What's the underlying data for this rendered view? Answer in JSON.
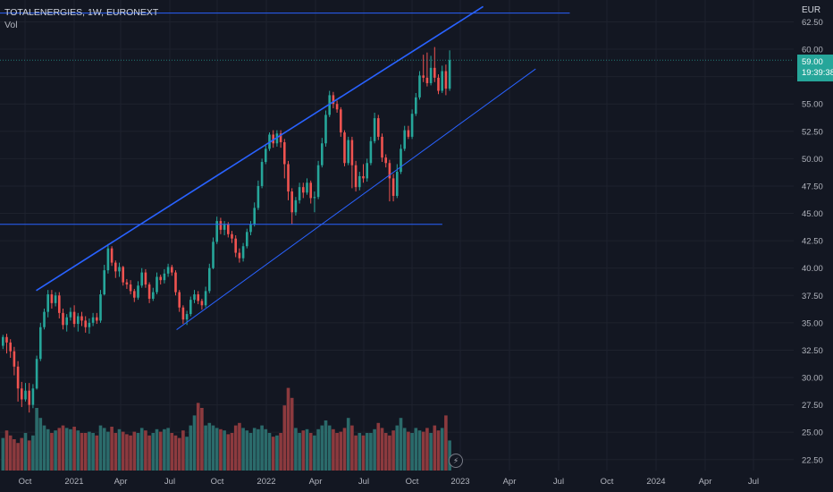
{
  "legend": {
    "symbol": "TOTALENERGIES, 1W, EURONEXT",
    "volume_label": "Vol"
  },
  "currency": "EUR",
  "last_price": {
    "value": "59.00",
    "countdown": "19:39:38"
  },
  "colors": {
    "background": "#131722",
    "up": "#26a69a",
    "down": "#ef5350",
    "vol_up": "#2b6b6b",
    "vol_down": "#8c3a3e",
    "drawing": "#2962ff",
    "grid": "#1e222d"
  },
  "icons": {
    "replay": "lightning-icon"
  },
  "chart_data": {
    "type": "candlestick",
    "y_axis": {
      "ticks": [
        "22.50",
        "25.00",
        "27.50",
        "30.00",
        "32.50",
        "35.00",
        "37.50",
        "40.00",
        "42.50",
        "45.00",
        "47.50",
        "50.00",
        "52.50",
        "55.00",
        "57.50",
        "60.00",
        "62.50"
      ],
      "range": [
        21.5,
        64.5
      ]
    },
    "x_axis": {
      "ticks": [
        "Oct",
        "2021",
        "Apr",
        "Jul",
        "Oct",
        "2022",
        "Apr",
        "Jul",
        "Oct",
        "2023",
        "Apr",
        "Jul",
        "Oct",
        "2024",
        "Apr",
        "Jul"
      ]
    },
    "last_price": 59.0,
    "candles": [
      [
        32.9,
        33.7,
        32.6,
        33.9
      ],
      [
        33.7,
        33.2,
        32.2,
        34.0
      ],
      [
        33.2,
        32.4,
        31.8,
        33.5
      ],
      [
        32.4,
        31.0,
        30.2,
        32.8
      ],
      [
        31.0,
        29.0,
        27.8,
        31.5
      ],
      [
        29.0,
        28.0,
        27.3,
        29.6
      ],
      [
        28.0,
        28.8,
        27.8,
        29.5
      ],
      [
        28.8,
        27.5,
        26.8,
        29.5
      ],
      [
        27.5,
        29.0,
        27.2,
        29.4
      ],
      [
        29.0,
        31.7,
        28.9,
        32.0
      ],
      [
        31.7,
        34.6,
        31.5,
        35.0
      ],
      [
        34.6,
        36.0,
        34.4,
        36.3
      ],
      [
        36.0,
        37.6,
        35.5,
        38.0
      ],
      [
        37.6,
        36.8,
        36.3,
        38.0
      ],
      [
        36.8,
        37.5,
        36.5,
        37.8
      ],
      [
        37.5,
        35.9,
        35.4,
        37.8
      ],
      [
        35.9,
        34.8,
        34.4,
        36.3
      ],
      [
        34.8,
        35.5,
        34.2,
        35.8
      ],
      [
        35.5,
        36.0,
        35.2,
        36.4
      ],
      [
        36.0,
        34.9,
        34.6,
        36.6
      ],
      [
        34.9,
        35.6,
        34.2,
        35.9
      ],
      [
        35.6,
        35.2,
        34.7,
        36.0
      ],
      [
        35.2,
        34.6,
        34.1,
        35.6
      ],
      [
        34.6,
        35.0,
        34.0,
        35.4
      ],
      [
        35.0,
        35.5,
        34.7,
        35.9
      ],
      [
        35.5,
        35.2,
        34.9,
        35.9
      ],
      [
        35.2,
        37.6,
        35.0,
        38.0
      ],
      [
        37.6,
        39.8,
        37.5,
        40.3
      ],
      [
        39.8,
        41.8,
        39.5,
        42.2
      ],
      [
        41.8,
        40.5,
        40.2,
        42.0
      ],
      [
        40.5,
        39.7,
        39.1,
        40.7
      ],
      [
        39.7,
        40.1,
        39.2,
        40.5
      ],
      [
        40.1,
        38.7,
        38.4,
        40.2
      ],
      [
        38.7,
        38.5,
        38.1,
        39.0
      ],
      [
        38.5,
        37.9,
        37.6,
        38.9
      ],
      [
        37.9,
        37.3,
        36.9,
        38.1
      ],
      [
        37.3,
        38.4,
        37.1,
        38.8
      ],
      [
        38.4,
        39.6,
        38.2,
        40.0
      ],
      [
        39.6,
        38.5,
        38.2,
        39.9
      ],
      [
        38.5,
        37.2,
        36.8,
        38.7
      ],
      [
        37.2,
        37.8,
        37.0,
        38.2
      ],
      [
        37.8,
        39.2,
        37.6,
        39.6
      ],
      [
        39.2,
        38.9,
        38.5,
        39.4
      ],
      [
        38.9,
        39.5,
        38.6,
        39.9
      ],
      [
        39.5,
        40.1,
        39.2,
        40.4
      ],
      [
        40.1,
        39.6,
        39.3,
        40.3
      ],
      [
        39.6,
        37.8,
        37.5,
        39.8
      ],
      [
        37.8,
        36.4,
        36.0,
        38.0
      ],
      [
        36.4,
        35.3,
        34.9,
        36.6
      ],
      [
        35.3,
        35.8,
        34.8,
        36.1
      ],
      [
        35.8,
        37.1,
        35.6,
        37.4
      ],
      [
        37.1,
        37.6,
        36.8,
        38.0
      ],
      [
        37.6,
        37.0,
        36.7,
        37.9
      ],
      [
        37.0,
        36.6,
        36.2,
        37.2
      ],
      [
        36.6,
        37.9,
        36.4,
        38.3
      ],
      [
        37.9,
        40.0,
        37.7,
        40.4
      ],
      [
        40.0,
        42.4,
        39.9,
        42.8
      ],
      [
        42.4,
        44.3,
        42.2,
        44.7
      ],
      [
        44.3,
        43.5,
        43.1,
        44.6
      ],
      [
        43.5,
        44.0,
        43.0,
        44.3
      ],
      [
        44.0,
        43.1,
        42.8,
        44.2
      ],
      [
        43.1,
        42.7,
        42.3,
        43.4
      ],
      [
        42.7,
        41.4,
        41.0,
        43.0
      ],
      [
        41.4,
        40.9,
        40.5,
        41.8
      ],
      [
        40.9,
        42.0,
        40.6,
        42.3
      ],
      [
        42.0,
        43.3,
        41.8,
        43.6
      ],
      [
        43.3,
        44.0,
        43.0,
        44.3
      ],
      [
        44.0,
        45.5,
        43.8,
        46.0
      ],
      [
        45.5,
        47.5,
        45.3,
        48.0
      ],
      [
        47.5,
        49.7,
        47.3,
        50.0
      ],
      [
        49.7,
        50.9,
        49.5,
        51.2
      ],
      [
        50.9,
        52.2,
        50.7,
        52.4
      ],
      [
        52.2,
        51.4,
        51.0,
        52.6
      ],
      [
        51.4,
        52.3,
        51.1,
        52.6
      ],
      [
        52.3,
        51.5,
        51.0,
        52.6
      ],
      [
        51.5,
        49.5,
        48.2,
        51.8
      ],
      [
        49.5,
        47.0,
        46.2,
        49.8
      ],
      [
        47.0,
        45.1,
        44.0,
        47.3
      ],
      [
        45.1,
        46.2,
        44.8,
        46.5
      ],
      [
        46.2,
        47.4,
        45.9,
        47.8
      ],
      [
        47.4,
        46.9,
        46.4,
        47.8
      ],
      [
        46.9,
        47.8,
        46.7,
        48.2
      ],
      [
        47.8,
        46.4,
        45.9,
        48.0
      ],
      [
        46.4,
        46.5,
        45.1,
        47.0
      ],
      [
        46.5,
        49.4,
        46.3,
        49.8
      ],
      [
        49.4,
        51.4,
        49.2,
        51.9
      ],
      [
        51.4,
        54.0,
        51.1,
        54.4
      ],
      [
        54.0,
        55.8,
        53.8,
        56.2
      ],
      [
        55.8,
        55.0,
        54.6,
        56.1
      ],
      [
        55.0,
        54.5,
        54.2,
        55.3
      ],
      [
        54.5,
        52.4,
        52.0,
        54.7
      ],
      [
        52.4,
        49.6,
        49.3,
        52.6
      ],
      [
        49.6,
        51.7,
        49.4,
        52.0
      ],
      [
        51.7,
        49.4,
        47.3,
        52.0
      ],
      [
        49.4,
        47.4,
        47.0,
        49.8
      ],
      [
        47.4,
        48.4,
        47.1,
        48.8
      ],
      [
        48.4,
        48.2,
        47.8,
        49.5
      ],
      [
        48.2,
        49.6,
        47.9,
        50.0
      ],
      [
        49.6,
        51.6,
        49.4,
        52.0
      ],
      [
        51.6,
        53.7,
        51.4,
        54.2
      ],
      [
        53.7,
        52.0,
        51.7,
        54.0
      ],
      [
        52.0,
        50.1,
        49.7,
        52.3
      ],
      [
        50.1,
        49.6,
        49.2,
        50.4
      ],
      [
        49.6,
        48.2,
        46.1,
        49.9
      ],
      [
        48.2,
        46.6,
        46.1,
        48.6
      ],
      [
        46.6,
        48.8,
        46.4,
        49.5
      ],
      [
        48.8,
        50.9,
        48.6,
        51.3
      ],
      [
        50.9,
        52.6,
        50.7,
        53.0
      ],
      [
        52.6,
        52.0,
        51.8,
        53.0
      ],
      [
        52.0,
        54.1,
        51.8,
        54.5
      ],
      [
        54.1,
        55.6,
        53.9,
        56.0
      ],
      [
        55.6,
        57.6,
        55.4,
        58.0
      ],
      [
        57.6,
        57.4,
        57.0,
        59.5
      ],
      [
        57.4,
        56.9,
        56.6,
        59.7
      ],
      [
        56.9,
        58.3,
        56.7,
        59.4
      ],
      [
        58.3,
        57.4,
        57.0,
        60.2
      ],
      [
        57.4,
        56.2,
        55.9,
        57.7
      ],
      [
        56.2,
        58.0,
        56.0,
        58.5
      ],
      [
        58.0,
        56.4,
        55.8,
        58.6
      ],
      [
        56.4,
        59.0,
        56.2,
        59.9
      ]
    ],
    "volume": [
      0.26,
      0.32,
      0.28,
      0.25,
      0.22,
      0.26,
      0.3,
      0.24,
      0.28,
      0.5,
      0.42,
      0.36,
      0.33,
      0.3,
      0.32,
      0.34,
      0.36,
      0.34,
      0.33,
      0.35,
      0.32,
      0.3,
      0.3,
      0.31,
      0.3,
      0.28,
      0.36,
      0.34,
      0.31,
      0.35,
      0.3,
      0.33,
      0.31,
      0.29,
      0.28,
      0.31,
      0.3,
      0.34,
      0.32,
      0.28,
      0.3,
      0.33,
      0.31,
      0.33,
      0.34,
      0.3,
      0.28,
      0.26,
      0.32,
      0.27,
      0.36,
      0.44,
      0.54,
      0.5,
      0.36,
      0.38,
      0.36,
      0.34,
      0.33,
      0.32,
      0.29,
      0.3,
      0.36,
      0.38,
      0.34,
      0.32,
      0.3,
      0.34,
      0.33,
      0.36,
      0.33,
      0.3,
      0.27,
      0.28,
      0.3,
      0.52,
      0.66,
      0.58,
      0.34,
      0.3,
      0.32,
      0.33,
      0.3,
      0.28,
      0.33,
      0.36,
      0.4,
      0.36,
      0.33,
      0.3,
      0.31,
      0.34,
      0.42,
      0.36,
      0.28,
      0.3,
      0.28,
      0.3,
      0.3,
      0.33,
      0.38,
      0.34,
      0.3,
      0.28,
      0.32,
      0.36,
      0.42,
      0.34,
      0.31,
      0.3,
      0.34,
      0.32,
      0.31,
      0.34,
      0.3,
      0.36,
      0.32,
      0.34,
      0.44,
      0.24
    ],
    "drawings": [
      {
        "name": "upper-channel-line",
        "points": [
          [
            0.0435,
            37.95
          ],
          [
            0.58,
            63.9
          ]
        ]
      },
      {
        "name": "lower-channel-line",
        "points": [
          [
            0.212,
            34.37
          ],
          [
            0.643,
            58.2
          ]
        ]
      },
      {
        "name": "resistance-horizontal",
        "points": [
          [
            0.0,
            63.3
          ],
          [
            0.684,
            63.3
          ]
        ]
      },
      {
        "name": "support-horizontal",
        "points": [
          [
            0.0,
            44.0
          ],
          [
            0.531,
            44.0
          ]
        ]
      }
    ]
  }
}
